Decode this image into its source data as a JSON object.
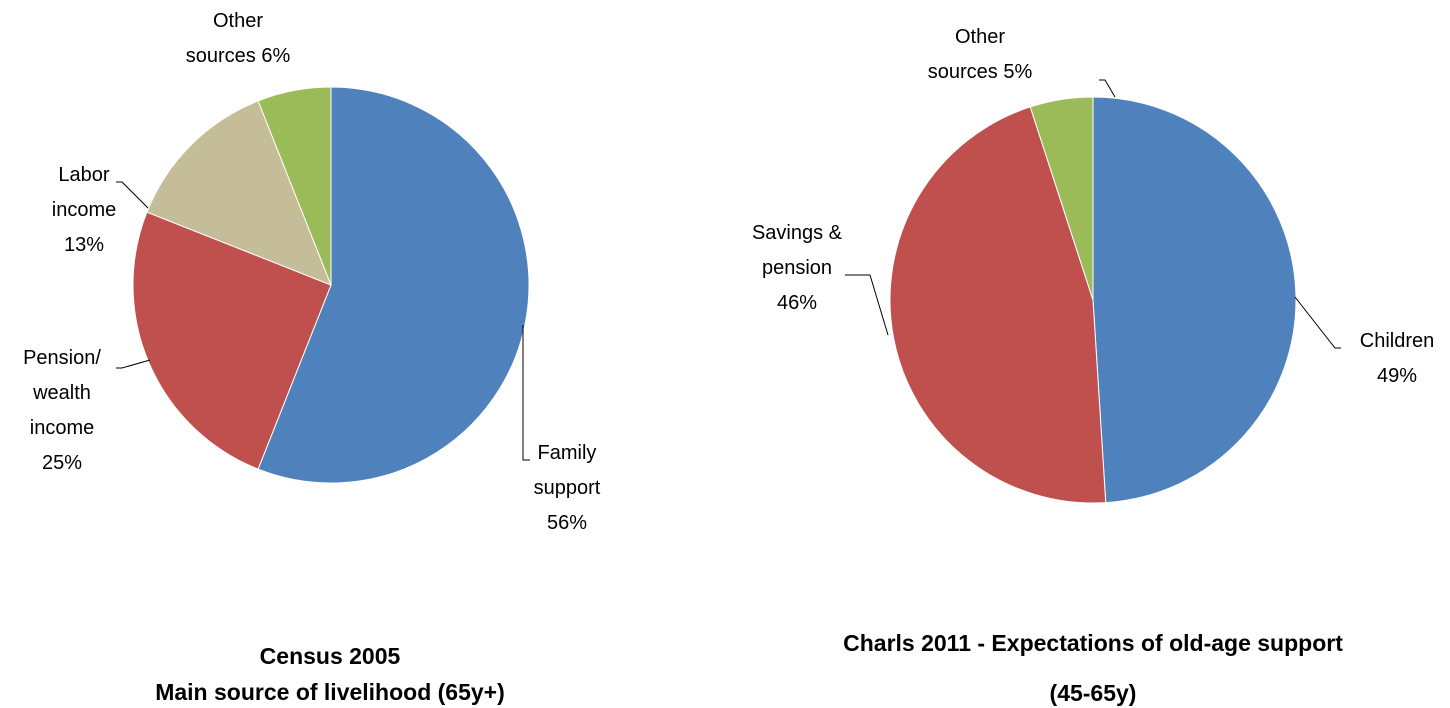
{
  "chart_data": [
    {
      "type": "pie",
      "title": "Census 2005",
      "subtitle": "Main source of livelihood (65y+)",
      "categories": [
        "Family support",
        "Pension/ wealth income",
        "Labor income",
        "Other sources"
      ],
      "values": [
        56,
        25,
        13,
        6
      ],
      "value_labels": [
        "56%",
        "25%",
        "13%",
        "6%"
      ],
      "colors": [
        "#4f81bd",
        "#c0504d",
        "#c4bd97",
        "#9bbb59"
      ]
    },
    {
      "type": "pie",
      "title": "Charls 2011 - Expectations of old-age support (45-65y)",
      "categories": [
        "Children",
        "Savings & pension",
        "Other sources"
      ],
      "values": [
        49,
        46,
        5
      ],
      "value_labels": [
        "49%",
        "46%",
        "5%"
      ],
      "colors": [
        "#4f81bd",
        "#c0504d",
        "#9bbb59"
      ]
    }
  ]
}
